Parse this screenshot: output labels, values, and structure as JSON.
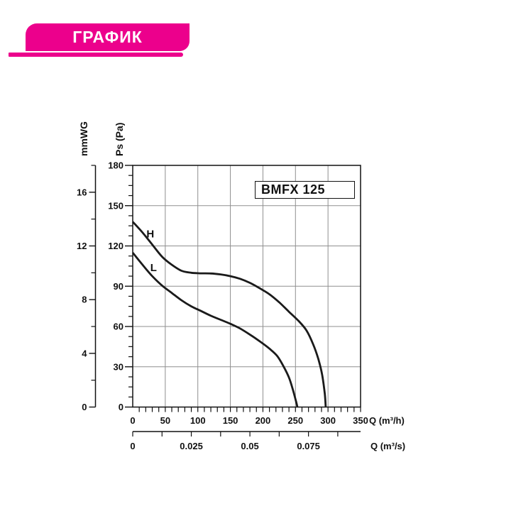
{
  "banner": {
    "label": "ГРАФИК"
  },
  "model_box": {
    "label": "BMFX 125"
  },
  "colors": {
    "accent": "#EC008C",
    "curve": "#1a1a1a",
    "grid": "#8f8f8f",
    "text": "#111111"
  },
  "chart_data": {
    "type": "line",
    "title": "BMFX 125",
    "x_axis": {
      "label": "Q (m³/h)",
      "range": [
        0,
        350
      ],
      "major_ticks": [
        0,
        50,
        100,
        150,
        200,
        250,
        300,
        350
      ],
      "minor_step": 10
    },
    "x_axis_secondary": {
      "label": "Q (m³/s)",
      "tick_step": 0.0125,
      "max_tick": 0.0875,
      "labeled_ticks": [
        {
          "v": 0,
          "t": "0"
        },
        {
          "v": 0.025,
          "t": "0.025"
        },
        {
          "v": 0.05,
          "t": "0.05"
        },
        {
          "v": 0.075,
          "t": "0.075"
        }
      ]
    },
    "y_axis": {
      "label": "Ps (Pa)",
      "range": [
        0,
        180
      ],
      "major_ticks": [
        0,
        30,
        60,
        90,
        120,
        150,
        180
      ],
      "minor_step": 7.5
    },
    "y_axis_secondary": {
      "label": "mmWG",
      "range": [
        0,
        18
      ],
      "major_ticks": [
        0,
        4,
        8,
        12,
        16
      ],
      "minor_ticks": [
        2,
        6,
        10,
        14,
        18
      ]
    },
    "grid": {
      "x_step": 50,
      "y_step": 30,
      "on": true
    },
    "series": [
      {
        "name": "H",
        "points": [
          [
            0,
            138
          ],
          [
            15,
            130
          ],
          [
            30,
            121
          ],
          [
            45,
            112
          ],
          [
            60,
            106
          ],
          [
            75,
            101.5
          ],
          [
            90,
            100
          ],
          [
            105,
            99.6
          ],
          [
            120,
            99.5
          ],
          [
            135,
            98.8
          ],
          [
            150,
            97.5
          ],
          [
            165,
            95.5
          ],
          [
            180,
            92.5
          ],
          [
            195,
            88.5
          ],
          [
            210,
            84
          ],
          [
            225,
            78
          ],
          [
            240,
            71
          ],
          [
            255,
            64
          ],
          [
            267,
            57
          ],
          [
            277,
            47
          ],
          [
            285,
            36
          ],
          [
            291,
            24
          ],
          [
            295,
            10
          ],
          [
            296.5,
            0
          ]
        ]
      },
      {
        "name": "L",
        "points": [
          [
            0,
            115
          ],
          [
            15,
            106
          ],
          [
            30,
            97.5
          ],
          [
            45,
            90.5
          ],
          [
            60,
            85
          ],
          [
            75,
            79.5
          ],
          [
            90,
            75
          ],
          [
            105,
            71.5
          ],
          [
            120,
            68
          ],
          [
            135,
            65
          ],
          [
            150,
            62
          ],
          [
            165,
            58.5
          ],
          [
            180,
            54
          ],
          [
            195,
            49
          ],
          [
            210,
            43.5
          ],
          [
            222,
            38
          ],
          [
            232,
            30
          ],
          [
            240,
            22
          ],
          [
            246,
            13
          ],
          [
            251,
            4
          ],
          [
            253,
            0
          ]
        ]
      }
    ],
    "annotations": [
      {
        "text": "H",
        "q": 27,
        "pa": 129
      },
      {
        "text": "L",
        "q": 32,
        "pa": 104
      }
    ]
  }
}
